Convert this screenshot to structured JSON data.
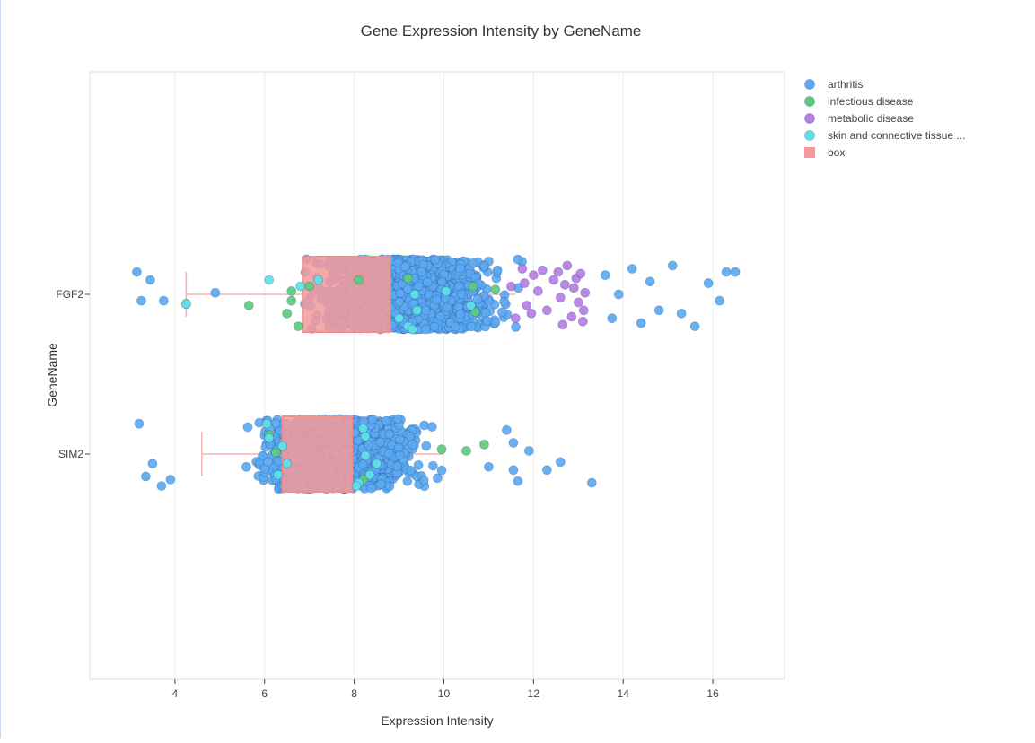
{
  "chart_data": {
    "type": "scatter",
    "title": "Gene Expression Intensity by GeneName",
    "xlabel": "Expression Intensity",
    "ylabel": "GeneName",
    "xlim": [
      2.1,
      17.6
    ],
    "x_ticks": [
      4,
      6,
      8,
      10,
      12,
      14,
      16
    ],
    "categories": [
      "FGF2",
      "SIM2"
    ],
    "grid": true,
    "legend_position": "top-right",
    "legend": [
      {
        "label": "arthritis",
        "color": "#5aa9f2",
        "marker": "circle"
      },
      {
        "label": "infectious disease",
        "color": "#5ccc7c",
        "marker": "circle"
      },
      {
        "label": "metabolic disease",
        "color": "#b77de6",
        "marker": "circle"
      },
      {
        "label": "skin and connective tissue ...",
        "color": "#5fe3e6",
        "marker": "circle"
      },
      {
        "label": "box",
        "color": "#f59a9a",
        "marker": "square"
      }
    ],
    "boxes": [
      {
        "category": "FGF2",
        "q1": 6.85,
        "median": 7.85,
        "q3": 8.8,
        "whisker_low": 4.25,
        "whisker_high": 11.6
      },
      {
        "category": "SIM2",
        "q1": 6.4,
        "median": 7.05,
        "q3": 7.95,
        "whisker_low": 4.6,
        "whisker_high": 10.0
      }
    ],
    "series": [
      {
        "name": "arthritis",
        "groups": [
          {
            "category": "FGF2",
            "x_range": [
              5.2,
              13.2
            ],
            "count": 1500,
            "outliers": [
              {
                "x": 3.15,
                "y": 0.14
              },
              {
                "x": 3.45,
                "y": 0.09
              },
              {
                "x": 3.25,
                "y": -0.04
              },
              {
                "x": 3.75,
                "y": -0.04
              },
              {
                "x": 4.25,
                "y": -0.06
              },
              {
                "x": 4.9,
                "y": 0.01
              },
              {
                "x": 13.6,
                "y": 0.12
              },
              {
                "x": 13.9,
                "y": 0.0
              },
              {
                "x": 14.2,
                "y": 0.16
              },
              {
                "x": 14.6,
                "y": 0.08
              },
              {
                "x": 14.8,
                "y": -0.1
              },
              {
                "x": 15.1,
                "y": 0.18
              },
              {
                "x": 15.3,
                "y": -0.12
              },
              {
                "x": 15.9,
                "y": 0.07
              },
              {
                "x": 16.15,
                "y": -0.04
              },
              {
                "x": 16.3,
                "y": 0.14
              },
              {
                "x": 16.5,
                "y": 0.14
              },
              {
                "x": 15.6,
                "y": -0.2
              },
              {
                "x": 14.4,
                "y": -0.18
              },
              {
                "x": 13.75,
                "y": -0.15
              }
            ]
          },
          {
            "category": "SIM2",
            "x_range": [
              4.1,
              11.2
            ],
            "count": 1200,
            "outliers": [
              {
                "x": 3.2,
                "y": 0.19
              },
              {
                "x": 3.5,
                "y": -0.06
              },
              {
                "x": 3.35,
                "y": -0.14
              },
              {
                "x": 3.7,
                "y": -0.2
              },
              {
                "x": 3.9,
                "y": -0.16
              },
              {
                "x": 11.4,
                "y": 0.15
              },
              {
                "x": 11.55,
                "y": 0.07
              },
              {
                "x": 11.9,
                "y": 0.02
              },
              {
                "x": 11.55,
                "y": -0.1
              },
              {
                "x": 12.3,
                "y": -0.1
              },
              {
                "x": 12.6,
                "y": -0.05
              },
              {
                "x": 13.3,
                "y": -0.18
              },
              {
                "x": 11.65,
                "y": -0.17
              },
              {
                "x": 11.0,
                "y": -0.08
              }
            ]
          }
        ]
      },
      {
        "name": "infectious disease",
        "groups": [
          {
            "category": "FGF2",
            "points": [
              {
                "x": 5.65,
                "y": -0.07
              },
              {
                "x": 6.5,
                "y": -0.12
              },
              {
                "x": 6.6,
                "y": -0.04
              },
              {
                "x": 6.6,
                "y": 0.02
              },
              {
                "x": 6.75,
                "y": -0.2
              },
              {
                "x": 7.0,
                "y": 0.05
              },
              {
                "x": 8.1,
                "y": 0.09
              },
              {
                "x": 9.2,
                "y": 0.1
              },
              {
                "x": 10.65,
                "y": 0.05
              },
              {
                "x": 10.7,
                "y": -0.11
              },
              {
                "x": 11.15,
                "y": 0.03
              }
            ]
          },
          {
            "category": "SIM2",
            "points": [
              {
                "x": 6.1,
                "y": 0.12
              },
              {
                "x": 6.25,
                "y": 0.01
              },
              {
                "x": 8.2,
                "y": -0.16
              },
              {
                "x": 9.95,
                "y": 0.03
              },
              {
                "x": 10.5,
                "y": 0.02
              },
              {
                "x": 10.9,
                "y": 0.06
              }
            ]
          }
        ]
      },
      {
        "name": "metabolic disease",
        "groups": [
          {
            "category": "FGF2",
            "points": [
              {
                "x": 11.5,
                "y": 0.05
              },
              {
                "x": 11.6,
                "y": -0.15
              },
              {
                "x": 11.75,
                "y": 0.16
              },
              {
                "x": 11.8,
                "y": 0.07
              },
              {
                "x": 11.85,
                "y": -0.07
              },
              {
                "x": 12.0,
                "y": 0.12
              },
              {
                "x": 12.1,
                "y": 0.02
              },
              {
                "x": 12.3,
                "y": -0.1
              },
              {
                "x": 12.45,
                "y": 0.09
              },
              {
                "x": 12.6,
                "y": -0.02
              },
              {
                "x": 12.7,
                "y": 0.06
              },
              {
                "x": 12.75,
                "y": 0.18
              },
              {
                "x": 12.85,
                "y": -0.14
              },
              {
                "x": 12.95,
                "y": 0.1
              },
              {
                "x": 13.0,
                "y": -0.05
              },
              {
                "x": 13.05,
                "y": 0.13
              },
              {
                "x": 13.1,
                "y": -0.17
              },
              {
                "x": 13.15,
                "y": 0.01
              },
              {
                "x": 12.65,
                "y": -0.19
              },
              {
                "x": 12.2,
                "y": 0.15
              },
              {
                "x": 12.9,
                "y": 0.04
              },
              {
                "x": 11.95,
                "y": -0.12
              },
              {
                "x": 12.55,
                "y": 0.14
              },
              {
                "x": 13.12,
                "y": -0.1
              }
            ]
          }
        ]
      },
      {
        "name": "skin and connective tissue ...",
        "groups": [
          {
            "category": "FGF2",
            "points": [
              {
                "x": 4.25,
                "y": -0.06
              },
              {
                "x": 6.1,
                "y": 0.09
              },
              {
                "x": 6.8,
                "y": 0.05
              },
              {
                "x": 7.2,
                "y": 0.09
              },
              {
                "x": 9.0,
                "y": -0.15
              },
              {
                "x": 9.2,
                "y": -0.2
              },
              {
                "x": 9.3,
                "y": -0.22
              },
              {
                "x": 9.35,
                "y": 0.0
              },
              {
                "x": 9.4,
                "y": -0.1
              },
              {
                "x": 10.05,
                "y": 0.02
              },
              {
                "x": 10.6,
                "y": -0.07
              }
            ]
          },
          {
            "category": "SIM2",
            "points": [
              {
                "x": 6.05,
                "y": 0.19
              },
              {
                "x": 6.1,
                "y": 0.1
              },
              {
                "x": 6.4,
                "y": 0.05
              },
              {
                "x": 6.5,
                "y": -0.06
              },
              {
                "x": 6.3,
                "y": -0.13
              },
              {
                "x": 8.2,
                "y": 0.16
              },
              {
                "x": 8.25,
                "y": 0.11
              },
              {
                "x": 8.25,
                "y": -0.01
              },
              {
                "x": 8.5,
                "y": -0.06
              },
              {
                "x": 8.1,
                "y": -0.18
              },
              {
                "x": 8.05,
                "y": -0.2
              },
              {
                "x": 8.35,
                "y": -0.13
              }
            ]
          }
        ]
      }
    ]
  }
}
